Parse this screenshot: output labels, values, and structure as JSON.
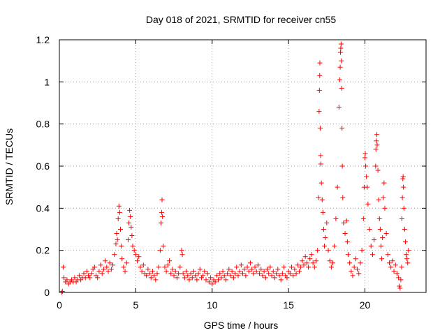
{
  "chart_data": {
    "type": "scatter",
    "title": "Day 018 of 2021, SRMTID for receiver cn55",
    "xlabel": "GPS time / hours",
    "ylabel": "SRMTID / TECUs",
    "xlim": [
      0,
      24
    ],
    "ylim": [
      0,
      1.2
    ],
    "xticks": [
      0,
      5,
      10,
      15,
      20
    ],
    "xtick_labels": [
      "0",
      "5",
      "10",
      "15",
      "20"
    ],
    "yticks": [
      0,
      0.2,
      0.4,
      0.6,
      0.8,
      1.0,
      1.2
    ],
    "ytick_labels": [
      "0",
      "0.2",
      "0.4",
      "0.6",
      "0.8",
      "1",
      "1.2"
    ],
    "grid": true,
    "marker": "+",
    "series": [
      {
        "name": "SRMTID",
        "color": "#ff0000",
        "points": [
          [
            0.15,
            0.0
          ],
          [
            0.2,
            0.005
          ],
          [
            0.25,
            0.12
          ],
          [
            0.3,
            0.07
          ],
          [
            0.4,
            0.05
          ],
          [
            0.5,
            0.06
          ],
          [
            0.6,
            0.04
          ],
          [
            0.7,
            0.05
          ],
          [
            0.8,
            0.06
          ],
          [
            0.9,
            0.05
          ],
          [
            1.0,
            0.07
          ],
          [
            1.1,
            0.05
          ],
          [
            1.2,
            0.06
          ],
          [
            1.3,
            0.08
          ],
          [
            1.4,
            0.06
          ],
          [
            1.5,
            0.07
          ],
          [
            1.6,
            0.09
          ],
          [
            1.7,
            0.07
          ],
          [
            1.8,
            0.1
          ],
          [
            1.9,
            0.08
          ],
          [
            2.0,
            0.07
          ],
          [
            2.1,
            0.09
          ],
          [
            2.2,
            0.11
          ],
          [
            2.3,
            0.12
          ],
          [
            2.4,
            0.08
          ],
          [
            2.5,
            0.07
          ],
          [
            2.6,
            0.1
          ],
          [
            2.7,
            0.13
          ],
          [
            2.8,
            0.09
          ],
          [
            2.9,
            0.11
          ],
          [
            3.0,
            0.15
          ],
          [
            3.1,
            0.12
          ],
          [
            3.2,
            0.1
          ],
          [
            3.3,
            0.14
          ],
          [
            3.4,
            0.11
          ],
          [
            3.5,
            0.13
          ],
          [
            3.6,
            0.18
          ],
          [
            3.7,
            0.23
          ],
          [
            3.75,
            0.28
          ],
          [
            3.8,
            0.25
          ],
          [
            3.85,
            0.35
          ],
          [
            3.9,
            0.41
          ],
          [
            3.95,
            0.38
          ],
          [
            4.0,
            0.3
          ],
          [
            4.05,
            0.22
          ],
          [
            4.1,
            0.16
          ],
          [
            4.2,
            0.12
          ],
          [
            4.3,
            0.1
          ],
          [
            4.4,
            0.14
          ],
          [
            4.5,
            0.25
          ],
          [
            4.55,
            0.33
          ],
          [
            4.6,
            0.39
          ],
          [
            4.65,
            0.36
          ],
          [
            4.7,
            0.31
          ],
          [
            4.75,
            0.27
          ],
          [
            4.8,
            0.22
          ],
          [
            4.9,
            0.2
          ],
          [
            5.0,
            0.18
          ],
          [
            5.1,
            0.15
          ],
          [
            5.2,
            0.17
          ],
          [
            5.3,
            0.12
          ],
          [
            5.4,
            0.1
          ],
          [
            5.5,
            0.13
          ],
          [
            5.6,
            0.09
          ],
          [
            5.7,
            0.08
          ],
          [
            5.8,
            0.11
          ],
          [
            5.9,
            0.09
          ],
          [
            6.0,
            0.07
          ],
          [
            6.1,
            0.1
          ],
          [
            6.2,
            0.08
          ],
          [
            6.3,
            0.06
          ],
          [
            6.4,
            0.09
          ],
          [
            6.5,
            0.12
          ],
          [
            6.6,
            0.2
          ],
          [
            6.65,
            0.33
          ],
          [
            6.7,
            0.38
          ],
          [
            6.72,
            0.44
          ],
          [
            6.75,
            0.36
          ],
          [
            6.8,
            0.22
          ],
          [
            6.9,
            0.12
          ],
          [
            7.0,
            0.1
          ],
          [
            7.1,
            0.13
          ],
          [
            7.2,
            0.15
          ],
          [
            7.3,
            0.09
          ],
          [
            7.4,
            0.11
          ],
          [
            7.5,
            0.08
          ],
          [
            7.6,
            0.1
          ],
          [
            7.7,
            0.07
          ],
          [
            7.8,
            0.09
          ],
          [
            7.9,
            0.12
          ],
          [
            8.0,
            0.2
          ],
          [
            8.05,
            0.18
          ],
          [
            8.1,
            0.09
          ],
          [
            8.2,
            0.07
          ],
          [
            8.3,
            0.1
          ],
          [
            8.4,
            0.08
          ],
          [
            8.5,
            0.06
          ],
          [
            8.6,
            0.09
          ],
          [
            8.7,
            0.07
          ],
          [
            8.8,
            0.1
          ],
          [
            8.9,
            0.08
          ],
          [
            9.0,
            0.06
          ],
          [
            9.1,
            0.09
          ],
          [
            9.2,
            0.11
          ],
          [
            9.3,
            0.07
          ],
          [
            9.4,
            0.08
          ],
          [
            9.5,
            0.1
          ],
          [
            9.6,
            0.06
          ],
          [
            9.7,
            0.09
          ],
          [
            9.8,
            0.05
          ],
          [
            9.9,
            0.07
          ],
          [
            10.0,
            0.04
          ],
          [
            10.1,
            0.06
          ],
          [
            10.2,
            0.05
          ],
          [
            10.3,
            0.08
          ],
          [
            10.4,
            0.06
          ],
          [
            10.5,
            0.09
          ],
          [
            10.6,
            0.07
          ],
          [
            10.7,
            0.1
          ],
          [
            10.8,
            0.08
          ],
          [
            10.9,
            0.06
          ],
          [
            11.0,
            0.09
          ],
          [
            11.1,
            0.11
          ],
          [
            11.2,
            0.08
          ],
          [
            11.3,
            0.1
          ],
          [
            11.4,
            0.07
          ],
          [
            11.5,
            0.09
          ],
          [
            11.6,
            0.12
          ],
          [
            11.7,
            0.08
          ],
          [
            11.8,
            0.1
          ],
          [
            11.9,
            0.13
          ],
          [
            12.0,
            0.09
          ],
          [
            12.1,
            0.11
          ],
          [
            12.2,
            0.08
          ],
          [
            12.3,
            0.12
          ],
          [
            12.4,
            0.1
          ],
          [
            12.5,
            0.14
          ],
          [
            12.6,
            0.11
          ],
          [
            12.7,
            0.09
          ],
          [
            12.8,
            0.12
          ],
          [
            12.9,
            0.1
          ],
          [
            13.0,
            0.13
          ],
          [
            13.1,
            0.09
          ],
          [
            13.2,
            0.11
          ],
          [
            13.3,
            0.08
          ],
          [
            13.4,
            0.1
          ],
          [
            13.5,
            0.07
          ],
          [
            13.6,
            0.11
          ],
          [
            13.7,
            0.09
          ],
          [
            13.8,
            0.12
          ],
          [
            13.9,
            0.08
          ],
          [
            14.0,
            0.1
          ],
          [
            14.1,
            0.07
          ],
          [
            14.2,
            0.09
          ],
          [
            14.3,
            0.11
          ],
          [
            14.4,
            0.08
          ],
          [
            14.5,
            0.06
          ],
          [
            14.6,
            0.09
          ],
          [
            14.7,
            0.12
          ],
          [
            14.8,
            0.08
          ],
          [
            14.9,
            0.07
          ],
          [
            15.0,
            0.1
          ],
          [
            15.1,
            0.09
          ],
          [
            15.2,
            0.12
          ],
          [
            15.3,
            0.08
          ],
          [
            15.4,
            0.11
          ],
          [
            15.5,
            0.09
          ],
          [
            15.6,
            0.13
          ],
          [
            15.7,
            0.1
          ],
          [
            15.8,
            0.12
          ],
          [
            15.9,
            0.15
          ],
          [
            16.0,
            0.13
          ],
          [
            16.1,
            0.17
          ],
          [
            16.2,
            0.14
          ],
          [
            16.3,
            0.12
          ],
          [
            16.4,
            0.16
          ],
          [
            16.5,
            0.18
          ],
          [
            16.6,
            0.14
          ],
          [
            16.7,
            0.12
          ],
          [
            16.8,
            0.15
          ],
          [
            16.9,
            0.2
          ],
          [
            16.95,
            0.45
          ],
          [
            17.0,
            0.86
          ],
          [
            17.02,
            0.96
          ],
          [
            17.04,
            1.03
          ],
          [
            17.05,
            1.09
          ],
          [
            17.07,
            0.78
          ],
          [
            17.1,
            0.65
          ],
          [
            17.12,
            0.61
          ],
          [
            17.15,
            0.52
          ],
          [
            17.2,
            0.44
          ],
          [
            17.25,
            0.38
          ],
          [
            17.3,
            0.3
          ],
          [
            17.35,
            0.22
          ],
          [
            17.4,
            0.26
          ],
          [
            17.5,
            0.33
          ],
          [
            17.6,
            0.2
          ],
          [
            17.7,
            0.15
          ],
          [
            17.8,
            0.12
          ],
          [
            17.9,
            0.14
          ],
          [
            18.0,
            0.22
          ],
          [
            18.1,
            0.35
          ],
          [
            18.2,
            0.5
          ],
          [
            18.3,
            0.88
          ],
          [
            18.35,
            1.01
          ],
          [
            18.38,
            1.07
          ],
          [
            18.4,
            1.14
          ],
          [
            18.42,
            1.16
          ],
          [
            18.44,
            1.18
          ],
          [
            18.46,
            1.1
          ],
          [
            18.48,
            0.97
          ],
          [
            18.5,
            0.78
          ],
          [
            18.52,
            0.6
          ],
          [
            18.55,
            0.45
          ],
          [
            18.6,
            0.33
          ],
          [
            18.7,
            0.28
          ],
          [
            18.8,
            0.34
          ],
          [
            18.85,
            0.24
          ],
          [
            18.9,
            0.18
          ],
          [
            19.0,
            0.14
          ],
          [
            19.1,
            0.1
          ],
          [
            19.2,
            0.08
          ],
          [
            19.3,
            0.12
          ],
          [
            19.4,
            0.16
          ],
          [
            19.5,
            0.11
          ],
          [
            19.6,
            0.09
          ],
          [
            19.7,
            0.14
          ],
          [
            19.8,
            0.2
          ],
          [
            19.9,
            0.35
          ],
          [
            19.95,
            0.5
          ],
          [
            20.0,
            0.64
          ],
          [
            20.02,
            0.66
          ],
          [
            20.05,
            0.6
          ],
          [
            20.1,
            0.55
          ],
          [
            20.15,
            0.5
          ],
          [
            20.2,
            0.42
          ],
          [
            20.3,
            0.3
          ],
          [
            20.4,
            0.22
          ],
          [
            20.5,
            0.18
          ],
          [
            20.6,
            0.25
          ],
          [
            20.7,
            0.6
          ],
          [
            20.72,
            0.68
          ],
          [
            20.75,
            0.72
          ],
          [
            20.78,
            0.75
          ],
          [
            20.8,
            0.7
          ],
          [
            20.85,
            0.58
          ],
          [
            20.9,
            0.44
          ],
          [
            20.95,
            0.35
          ],
          [
            21.0,
            0.3
          ],
          [
            21.05,
            0.22
          ],
          [
            21.1,
            0.16
          ],
          [
            21.15,
            0.26
          ],
          [
            21.2,
            0.45
          ],
          [
            21.25,
            0.52
          ],
          [
            21.3,
            0.4
          ],
          [
            21.4,
            0.28
          ],
          [
            21.5,
            0.18
          ],
          [
            21.6,
            0.14
          ],
          [
            21.7,
            0.12
          ],
          [
            21.8,
            0.15
          ],
          [
            21.9,
            0.1
          ],
          [
            22.0,
            0.13
          ],
          [
            22.1,
            0.09
          ],
          [
            22.2,
            0.07
          ],
          [
            22.25,
            0.03
          ],
          [
            22.3,
            0.02
          ],
          [
            22.35,
            0.06
          ],
          [
            22.4,
            0.12
          ],
          [
            22.42,
            0.35
          ],
          [
            22.45,
            0.45
          ],
          [
            22.48,
            0.54
          ],
          [
            22.5,
            0.55
          ],
          [
            22.52,
            0.5
          ],
          [
            22.55,
            0.4
          ],
          [
            22.6,
            0.3
          ],
          [
            22.65,
            0.24
          ],
          [
            22.7,
            0.18
          ],
          [
            22.75,
            0.16
          ],
          [
            22.8,
            0.14
          ],
          [
            22.85,
            0.2
          ]
        ]
      }
    ]
  }
}
